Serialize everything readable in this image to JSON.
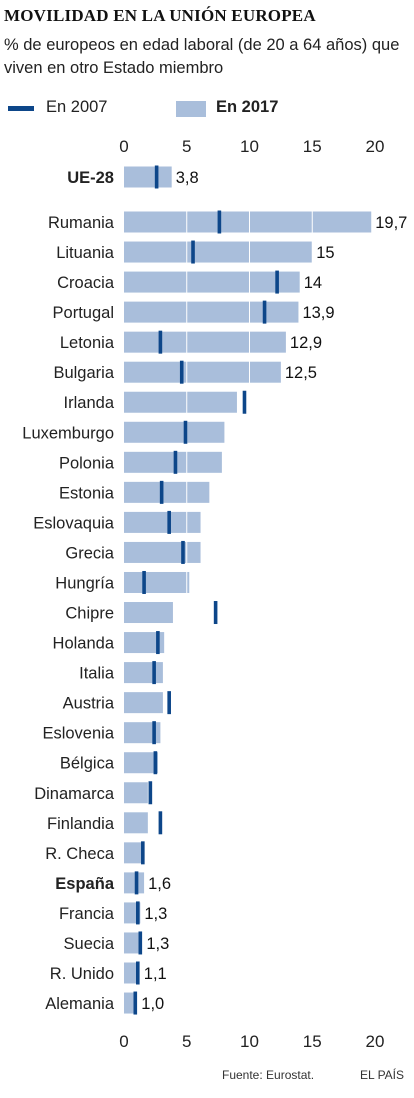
{
  "title": "MOVILIDAD EN LA UNIÓN EUROPEA",
  "subtitle": "% de europeos en edad laboral (de 20 a 64 años) que viven en otro Estado miembro",
  "legend": {
    "label_2007": "En 2007",
    "label_2017": "En 2017"
  },
  "source": "Fuente: Eurostat.",
  "brand": "EL PAÍS",
  "colors": {
    "bar_2017": "#a9bedb",
    "mark_2007": "#0d4689",
    "grid": "#ffffff",
    "axis_text": "#222222"
  },
  "chart_data": {
    "type": "bar",
    "orientation": "horizontal",
    "xlim": [
      0,
      20
    ],
    "xticks": [
      "0",
      "5",
      "10",
      "15",
      "20"
    ],
    "categories": [
      "UE-28",
      "Rumania",
      "Lituania",
      "Croacia",
      "Portugal",
      "Letonia",
      "Bulgaria",
      "Irlanda",
      "Luxemburgo",
      "Polonia",
      "Estonia",
      "Eslovaquia",
      "Grecia",
      "Hungría",
      "Chipre",
      "Holanda",
      "Italia",
      "Austria",
      "Eslovenia",
      "Bélgica",
      "Dinamarca",
      "Finlandia",
      "R. Checa",
      "España",
      "Francia",
      "Suecia",
      "R. Unido",
      "Alemania"
    ],
    "bold_categories": [
      "UE-28",
      "España"
    ],
    "series": [
      {
        "name": "En 2017",
        "values": [
          3.8,
          19.7,
          15,
          14,
          13.9,
          12.9,
          12.5,
          9.0,
          8.0,
          7.8,
          6.8,
          6.1,
          6.1,
          5.2,
          3.9,
          3.2,
          3.1,
          3.1,
          2.9,
          2.7,
          1.9,
          1.9,
          1.6,
          1.6,
          1.3,
          1.3,
          1.1,
          1.0
        ]
      },
      {
        "name": "En 2007",
        "values": [
          2.6,
          7.6,
          5.5,
          12.2,
          11.2,
          2.9,
          4.6,
          9.6,
          4.9,
          4.1,
          3.0,
          3.6,
          4.7,
          1.6,
          7.3,
          2.7,
          2.4,
          3.6,
          2.4,
          2.5,
          2.1,
          2.9,
          1.5,
          1.0,
          1.1,
          1.3,
          1.1,
          0.9
        ]
      }
    ],
    "data_labels": [
      "3,8",
      "19,7",
      "15",
      "14",
      "13,9",
      "12,9",
      "12,5",
      "",
      "",
      "",
      "",
      "",
      "",
      "",
      "",
      "",
      "",
      "",
      "",
      "",
      "",
      "",
      "",
      "1,6",
      "1,3",
      "1,3",
      "1,1",
      "1,0"
    ],
    "grid": true
  }
}
